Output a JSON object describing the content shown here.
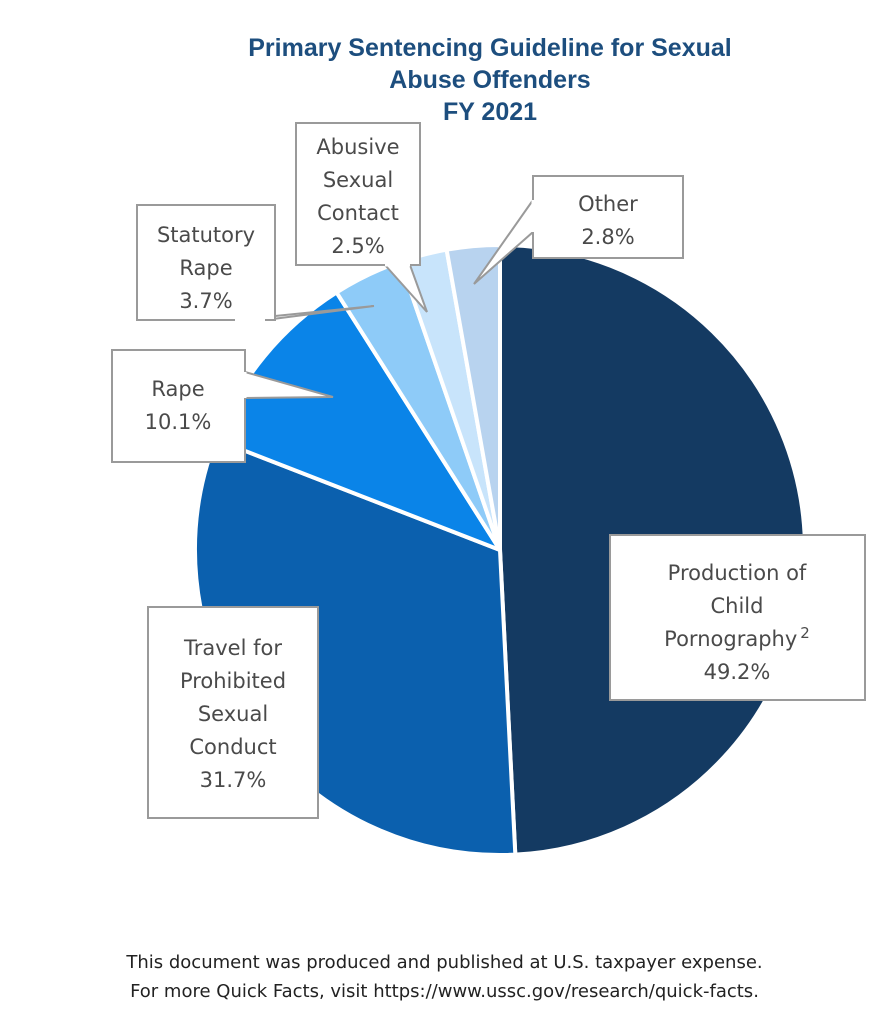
{
  "chart_data": {
    "type": "pie",
    "title": [
      "Primary Sentencing Guideline for Sexual",
      "Abuse Offenders",
      "FY 2021"
    ],
    "start_angle": "12 o'clock, clockwise",
    "slices": [
      {
        "label": [
          "Production of",
          "Child",
          "Pornography"
        ],
        "superscript": "2",
        "value": 49.2,
        "value_label": "49.2%",
        "color": "#143a62"
      },
      {
        "label": [
          "Travel for",
          "Prohibited",
          "Sexual",
          "Conduct"
        ],
        "value": 31.7,
        "value_label": "31.7%",
        "color": "#0b60ae"
      },
      {
        "label": [
          "Rape"
        ],
        "value": 10.1,
        "value_label": "10.1%",
        "color": "#0a84e8"
      },
      {
        "label": [
          "Statutory",
          "Rape"
        ],
        "value": 3.7,
        "value_label": "3.7%",
        "color": "#8ecbf8"
      },
      {
        "label": [
          "Abusive",
          "Sexual",
          "Contact"
        ],
        "value": 2.5,
        "value_label": "2.5%",
        "color": "#c8e4fb"
      },
      {
        "label": [
          "Other"
        ],
        "value": 2.8,
        "value_label": "2.8%",
        "color": "#b8d3ef"
      }
    ]
  },
  "footer": [
    "This document was produced and published at U.S. taxpayer expense.",
    "For more Quick Facts, visit https://www.ussc.gov/research/quick-facts."
  ]
}
